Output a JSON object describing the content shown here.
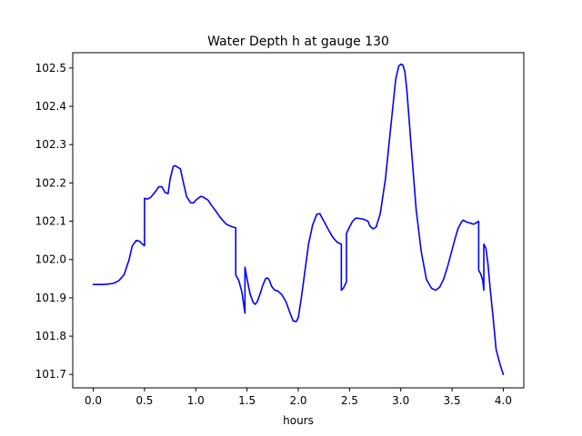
{
  "chart_data": {
    "type": "line",
    "title": "Water Depth h at gauge 130",
    "xlabel": "hours",
    "ylabel": "",
    "xlim": [
      -0.2,
      4.2
    ],
    "ylim": [
      101.665,
      102.54
    ],
    "x_ticks": [
      0.0,
      0.5,
      1.0,
      1.5,
      2.0,
      2.5,
      3.0,
      3.5,
      4.0
    ],
    "x_tick_labels": [
      "0.0",
      "0.5",
      "1.0",
      "1.5",
      "2.0",
      "2.5",
      "3.0",
      "3.5",
      "4.0"
    ],
    "y_ticks": [
      101.7,
      101.8,
      101.9,
      102.0,
      102.1,
      102.2,
      102.3,
      102.4,
      102.5
    ],
    "y_tick_labels": [
      "101.7",
      "101.8",
      "101.9",
      "102.0",
      "102.1",
      "102.2",
      "102.3",
      "102.4",
      "102.5"
    ],
    "grid": false,
    "legend": "none",
    "series": [
      {
        "color": "#0000ff",
        "x": [
          0.0,
          0.1,
          0.15,
          0.2,
          0.25,
          0.3,
          0.35,
          0.38,
          0.42,
          0.45,
          0.48,
          0.5,
          0.5,
          0.53,
          0.56,
          0.6,
          0.64,
          0.67,
          0.7,
          0.73,
          0.75,
          0.78,
          0.8,
          0.83,
          0.85,
          0.88,
          0.91,
          0.95,
          0.98,
          1.0,
          1.05,
          1.08,
          1.12,
          1.15,
          1.2,
          1.23,
          1.27,
          1.3,
          1.35,
          1.39,
          1.39,
          1.42,
          1.45,
          1.48,
          1.48,
          1.5,
          1.53,
          1.56,
          1.58,
          1.6,
          1.63,
          1.65,
          1.68,
          1.7,
          1.72,
          1.74,
          1.77,
          1.8,
          1.84,
          1.88,
          1.92,
          1.95,
          1.98,
          2.0,
          2.03,
          2.06,
          2.1,
          2.14,
          2.18,
          2.21,
          2.23,
          2.26,
          2.3,
          2.34,
          2.38,
          2.42,
          2.42,
          2.44,
          2.47,
          2.47,
          2.5,
          2.53,
          2.56,
          2.6,
          2.64,
          2.68,
          2.7,
          2.73,
          2.76,
          2.8,
          2.85,
          2.9,
          2.95,
          2.98,
          3.0,
          3.02,
          3.04,
          3.06,
          3.1,
          3.15,
          3.2,
          3.25,
          3.3,
          3.34,
          3.38,
          3.42,
          3.46,
          3.5,
          3.53,
          3.56,
          3.59,
          3.61,
          3.64,
          3.68,
          3.71,
          3.73,
          3.76,
          3.76,
          3.78,
          3.8,
          3.81,
          3.81,
          3.83,
          3.85,
          3.87,
          3.9,
          3.93,
          3.95,
          3.97,
          4.0
        ],
        "y": [
          101.935,
          101.935,
          101.936,
          101.938,
          101.945,
          101.96,
          102.0,
          102.035,
          102.05,
          102.048,
          102.04,
          102.036,
          102.16,
          102.158,
          102.162,
          102.175,
          102.19,
          102.19,
          102.175,
          102.172,
          102.21,
          102.243,
          102.245,
          102.24,
          102.237,
          102.2,
          102.165,
          102.148,
          102.148,
          102.155,
          102.165,
          102.162,
          102.155,
          102.143,
          102.125,
          102.113,
          102.1,
          102.092,
          102.086,
          102.083,
          101.96,
          101.945,
          101.915,
          101.86,
          101.98,
          101.95,
          101.91,
          101.888,
          101.883,
          101.89,
          101.912,
          101.93,
          101.95,
          101.952,
          101.945,
          101.93,
          101.92,
          101.918,
          101.908,
          101.89,
          101.86,
          101.84,
          101.838,
          101.848,
          101.9,
          101.96,
          102.04,
          102.09,
          102.118,
          102.12,
          102.11,
          102.095,
          102.075,
          102.057,
          102.045,
          102.04,
          101.92,
          101.925,
          101.942,
          102.068,
          102.085,
          102.1,
          102.108,
          102.107,
          102.105,
          102.1,
          102.087,
          102.08,
          102.085,
          102.12,
          102.21,
          102.34,
          102.47,
          102.505,
          102.51,
          102.508,
          102.49,
          102.44,
          102.3,
          102.13,
          102.02,
          101.948,
          101.925,
          101.92,
          101.928,
          101.95,
          101.985,
          102.025,
          102.055,
          102.082,
          102.097,
          102.103,
          102.098,
          102.095,
          102.092,
          102.095,
          102.1,
          101.972,
          101.962,
          101.945,
          101.92,
          102.04,
          102.03,
          101.99,
          101.93,
          101.85,
          101.765,
          101.745,
          101.725,
          101.7
        ]
      }
    ]
  }
}
